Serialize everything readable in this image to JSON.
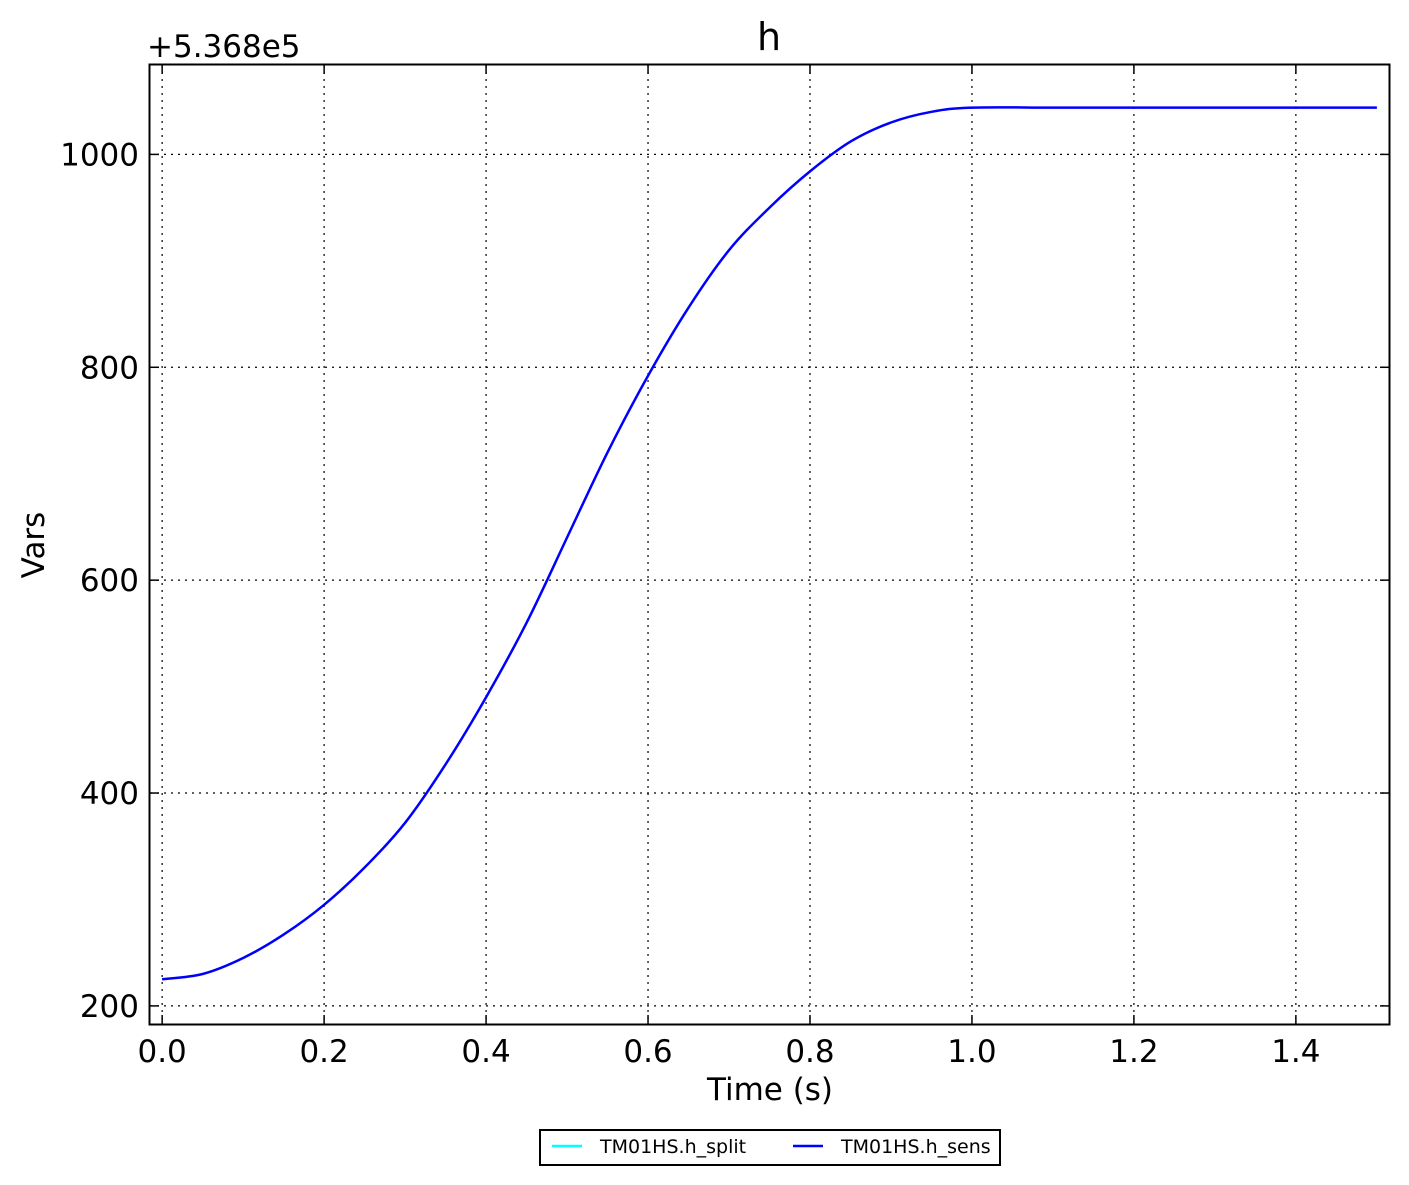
{
  "chart_data": {
    "type": "line",
    "title": "h",
    "offset_label": "+5.368e5",
    "xlabel": "Time (s)",
    "ylabel": "Vars",
    "xlim": [
      -0.015,
      1.515
    ],
    "ylim": [
      183,
      1084
    ],
    "xticks": [
      0.0,
      0.2,
      0.4,
      0.6,
      0.8,
      1.0,
      1.2,
      1.4
    ],
    "xtick_labels": [
      "0.0",
      "0.2",
      "0.4",
      "0.6",
      "0.8",
      "1.0",
      "1.2",
      "1.4"
    ],
    "yticks": [
      200,
      400,
      600,
      800,
      1000
    ],
    "ytick_labels": [
      "200",
      "400",
      "600",
      "800",
      "1000"
    ],
    "grid": true,
    "legend_position": "bottom-center, below axes",
    "series": [
      {
        "name": "TM01HS.h_split",
        "color": "#00ffff",
        "x": [],
        "y": []
      },
      {
        "name": "TM01HS.h_sens",
        "color": "#0000ff",
        "x": [
          0.0,
          0.05,
          0.1,
          0.15,
          0.2,
          0.25,
          0.3,
          0.35,
          0.4,
          0.45,
          0.5,
          0.55,
          0.6,
          0.65,
          0.7,
          0.75,
          0.8,
          0.85,
          0.9,
          0.95,
          1.0,
          1.1,
          1.2,
          1.3,
          1.4,
          1.5
        ],
        "y": [
          225,
          230,
          245,
          267,
          295,
          330,
          372,
          427,
          490,
          560,
          640,
          720,
          792,
          856,
          910,
          950,
          984,
          1012,
          1030,
          1040,
          1044,
          1044,
          1044,
          1044,
          1044,
          1044
        ]
      }
    ]
  }
}
